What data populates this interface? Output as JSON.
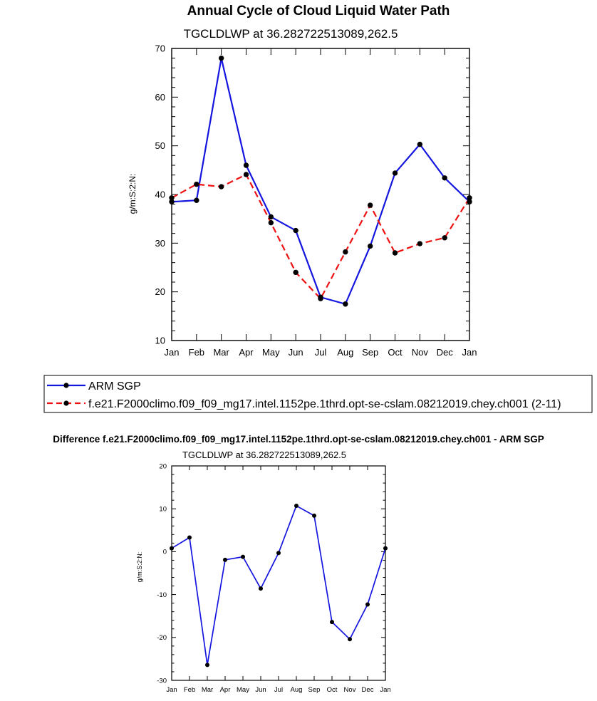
{
  "chart_data": [
    {
      "type": "line",
      "title": "Annual Cycle of Cloud Liquid Water Path",
      "subtitle": "TGCLDLWP at 36.282722513089,262.5",
      "ylabel": "g/m:S:2:N:",
      "xlabel": "",
      "ylim": [
        10,
        70
      ],
      "yticks": [
        "10",
        "20",
        "30",
        "40",
        "50",
        "60",
        "70"
      ],
      "categories": [
        "Jan",
        "Feb",
        "Mar",
        "Apr",
        "May",
        "Jun",
        "Jul",
        "Aug",
        "Sep",
        "Oct",
        "Nov",
        "Dec",
        "Jan"
      ],
      "grid": false,
      "legend_position": "below",
      "series": [
        {
          "name": "ARM SGP",
          "color": "#1515e0",
          "dash": "solid",
          "values": [
            38.5,
            38.8,
            68.0,
            46.0,
            35.4,
            32.6,
            18.9,
            17.5,
            29.4,
            44.4,
            50.3,
            43.4,
            38.5
          ]
        },
        {
          "name": "f.e21.F2000climo.f09_f09_mg17.intel.1152pe.1thrd.opt-se-cslam.08212019.chey.ch001 (2-11)",
          "color": "#ee1111",
          "dash": "dashed",
          "values": [
            39.3,
            42.1,
            41.6,
            44.1,
            34.2,
            24.0,
            18.6,
            28.2,
            37.8,
            28.0,
            29.9,
            31.1,
            39.3
          ]
        }
      ]
    },
    {
      "type": "line",
      "title": "Difference f.e21.F2000climo.f09_f09_mg17.intel.1152pe.1thrd.opt-se-cslam.08212019.chey.ch001 - ARM SGP",
      "subtitle": "TGCLDLWP at 36.282722513089,262.5",
      "ylabel": "g/m:S:2:N:",
      "xlabel": "",
      "ylim": [
        -30,
        20
      ],
      "yticks": [
        "-30",
        "-20",
        "-10",
        "0",
        "10",
        "20"
      ],
      "categories": [
        "Jan",
        "Feb",
        "Mar",
        "Apr",
        "May",
        "Jun",
        "Jul",
        "Aug",
        "Sep",
        "Oct",
        "Nov",
        "Dec",
        "Jan"
      ],
      "grid": false,
      "series": [
        {
          "color": "#1515e0",
          "dash": "solid",
          "values": [
            0.8,
            3.3,
            -26.4,
            -1.9,
            -1.2,
            -8.6,
            -0.3,
            10.7,
            8.4,
            -16.4,
            -20.4,
            -12.3,
            0.8
          ]
        }
      ]
    }
  ]
}
